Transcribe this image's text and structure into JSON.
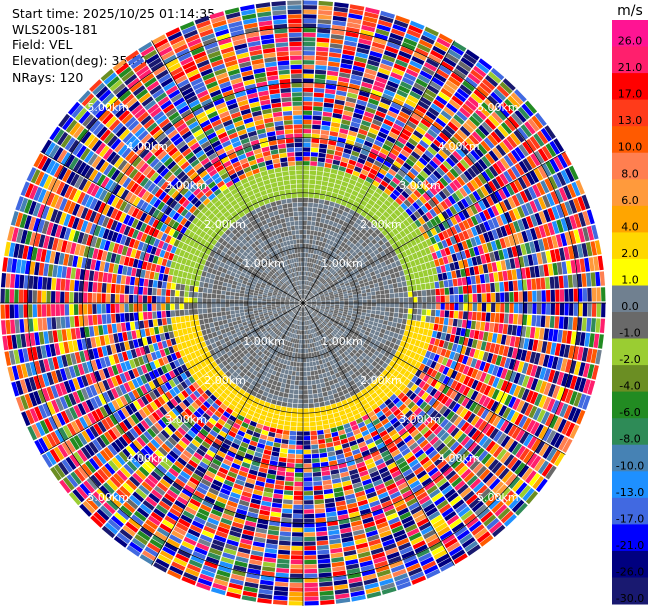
{
  "header": {
    "start_time": "Start time: 2025/10/25 01:14:35",
    "instrument": "WLS200s-181",
    "field": "Field: VEL",
    "elevation": "Elevation(deg): 35.00",
    "nrays": "NRays: 120"
  },
  "chart_data": {
    "type": "heatmap",
    "projection": "polar-ppi",
    "n_rays": 120,
    "elevation_deg": 35.0,
    "range_rings_km": [
      1,
      2,
      3,
      4,
      5
    ],
    "ring_labels": [
      "1.00km",
      "2.00km",
      "3.00km",
      "4.00km",
      "5.00km"
    ],
    "spokes_deg_step": 30,
    "max_range_km": 5.5,
    "colorbar": {
      "unit": "m/s",
      "ticks": [
        "26.0",
        "21.0",
        "17.0",
        "13.0",
        "10.0",
        "8.0",
        "6.0",
        "4.0",
        "2.0",
        "1.0",
        "0.0",
        "-1.0",
        "-2.0",
        "-4.0",
        "-6.0",
        "-8.0",
        "-10.0",
        "-13.0",
        "-17.0",
        "-21.0",
        "-26.0",
        "-30.0"
      ],
      "colors": [
        "#ff1493",
        "#ff1f6d",
        "#ff0000",
        "#ff3b1a",
        "#ff5a00",
        "#ff7f50",
        "#ff9a3c",
        "#ffa500",
        "#ffd700",
        "#ffff00",
        "#708090",
        "#696969",
        "#9acd32",
        "#6b8e23",
        "#228b22",
        "#2e8b57",
        "#4682b4",
        "#1e90ff",
        "#4169e1",
        "#0000ff",
        "#000080",
        "#191970"
      ]
    },
    "regions": [
      {
        "name": "near-zero core",
        "range_km": [
          0,
          1.9
        ],
        "value_ms": [
          -1.0,
          1.0
        ]
      },
      {
        "name": "north-west shear",
        "range_km": [
          1.9,
          2.4
        ],
        "value_ms": [
          -2.0,
          -1.0
        ]
      },
      {
        "name": "south-east shear",
        "range_km": [
          1.5,
          2.5
        ],
        "value_ms": [
          2.0,
          4.0
        ]
      },
      {
        "name": "noise",
        "range_km": [
          2.4,
          5.5
        ],
        "value_ms": [
          -30.0,
          26.0
        ]
      }
    ]
  }
}
